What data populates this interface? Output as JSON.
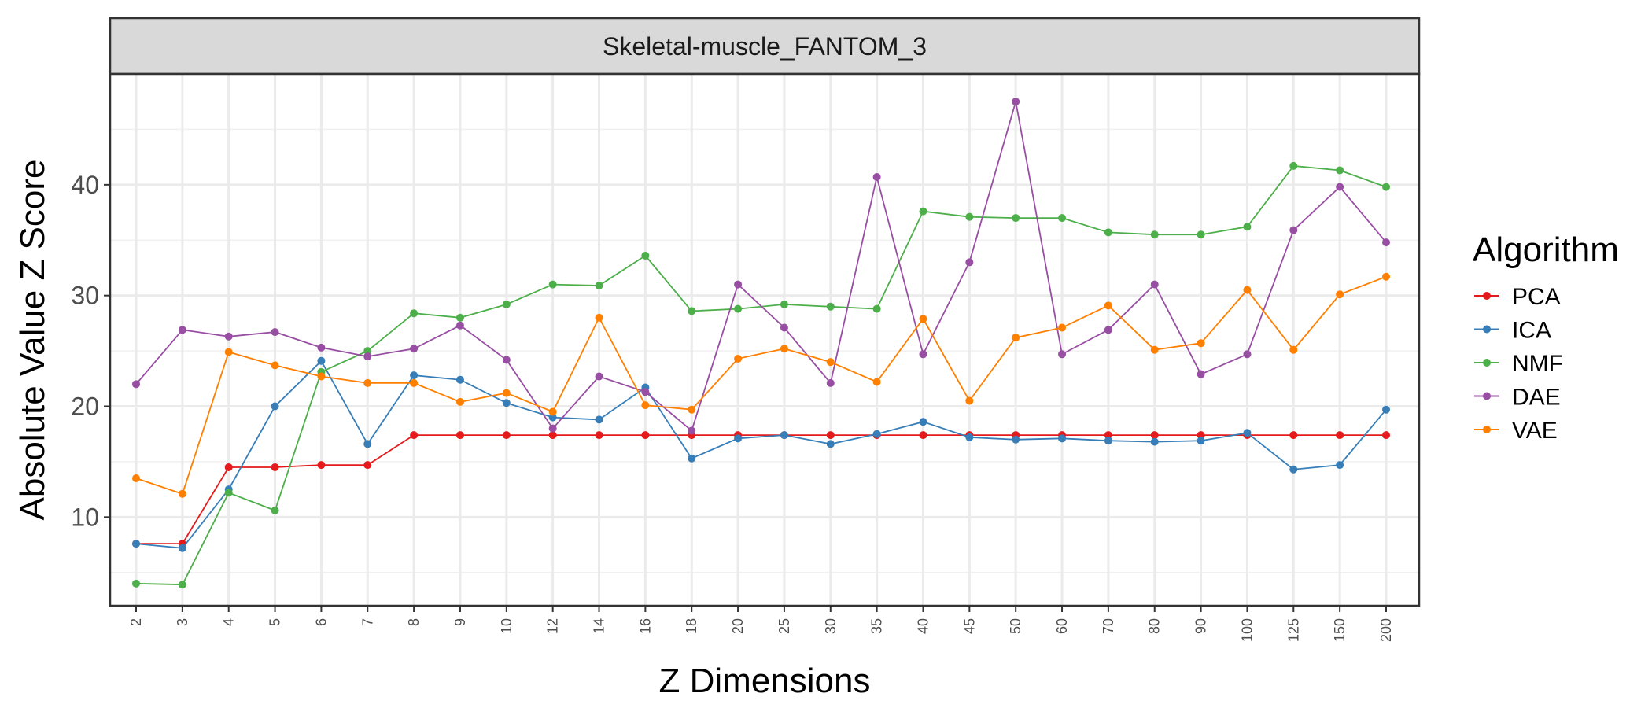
{
  "chart_data": {
    "type": "line",
    "title": "Skeletal-muscle_FANTOM_3",
    "xlabel": "Z Dimensions",
    "ylabel": "Absolute Value Z Score",
    "categories": [
      "2",
      "3",
      "4",
      "5",
      "6",
      "7",
      "8",
      "9",
      "10",
      "12",
      "14",
      "16",
      "18",
      "20",
      "25",
      "30",
      "35",
      "40",
      "45",
      "50",
      "60",
      "70",
      "80",
      "90",
      "100",
      "125",
      "150",
      "200"
    ],
    "ylim": [
      2,
      50
    ],
    "yticks": [
      10,
      20,
      30,
      40
    ],
    "grid": true,
    "legend": {
      "title": "Algorithm",
      "position": "right"
    },
    "series": [
      {
        "name": "PCA",
        "color": "#e41a1c",
        "values": [
          7.6,
          7.6,
          14.5,
          14.5,
          14.7,
          14.7,
          17.4,
          17.4,
          17.4,
          17.4,
          17.4,
          17.4,
          17.4,
          17.4,
          17.4,
          17.4,
          17.4,
          17.4,
          17.4,
          17.4,
          17.4,
          17.4,
          17.4,
          17.4,
          17.4,
          17.4,
          17.4,
          17.4
        ]
      },
      {
        "name": "ICA",
        "color": "#377eb8",
        "values": [
          7.6,
          7.2,
          12.5,
          20.0,
          24.1,
          16.6,
          22.8,
          22.4,
          20.3,
          19.0,
          18.8,
          21.7,
          15.3,
          17.1,
          17.4,
          16.6,
          17.5,
          18.6,
          17.2,
          17.0,
          17.1,
          16.9,
          16.8,
          16.9,
          17.6,
          14.3,
          14.7,
          19.7
        ]
      },
      {
        "name": "NMF",
        "color": "#4daf4a",
        "values": [
          4.0,
          3.9,
          12.2,
          10.6,
          23.1,
          25.0,
          28.4,
          28.0,
          29.2,
          31.0,
          30.9,
          33.6,
          28.6,
          28.8,
          29.2,
          29.0,
          28.8,
          37.6,
          37.1,
          37.0,
          37.0,
          35.7,
          35.5,
          35.5,
          36.2,
          41.7,
          41.3,
          39.8
        ]
      },
      {
        "name": "DAE",
        "color": "#984ea3",
        "values": [
          22.0,
          26.9,
          26.3,
          26.7,
          25.3,
          24.5,
          25.2,
          27.3,
          24.2,
          18.0,
          22.7,
          21.3,
          17.8,
          31.0,
          27.1,
          22.1,
          40.7,
          24.7,
          33.0,
          47.5,
          24.7,
          26.9,
          31.0,
          22.9,
          24.7,
          35.9,
          39.8,
          34.8
        ]
      },
      {
        "name": "VAE",
        "color": "#ff7f00",
        "values": [
          13.5,
          12.1,
          24.9,
          23.7,
          22.7,
          22.1,
          22.1,
          20.4,
          21.2,
          19.5,
          28.0,
          20.1,
          19.7,
          24.3,
          25.2,
          24.0,
          22.2,
          27.9,
          20.5,
          26.2,
          27.1,
          29.1,
          25.1,
          25.7,
          30.5,
          25.1,
          30.1,
          31.7
        ]
      }
    ]
  }
}
